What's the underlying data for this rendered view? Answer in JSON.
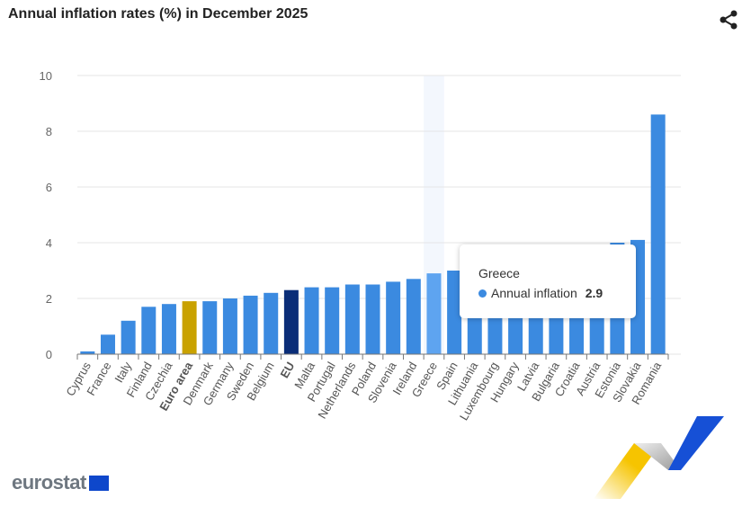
{
  "title": "Annual inflation rates (%) in December 2025",
  "share_icon": "share-icon",
  "tooltip": {
    "country": "Greece",
    "series": "Annual inflation",
    "value": "2.9"
  },
  "logo": {
    "text": "eurostat"
  },
  "colors": {
    "bar": "#3b8ae0",
    "euro_area": "#c9a200",
    "eu": "#0a2d78",
    "highlight": "#5ea4f0",
    "grid": "#e6e6e6"
  },
  "chart_data": {
    "type": "bar",
    "title": "Annual inflation rates (%) in December 2025",
    "ylim": [
      0,
      10
    ],
    "yticks": [
      0,
      2,
      4,
      6,
      8,
      10
    ],
    "grid": true,
    "categories": [
      "Cyprus",
      "France",
      "Italy",
      "Finland",
      "Czechia",
      "Euro area",
      "Denmark",
      "Germany",
      "Sweden",
      "Belgium",
      "EU",
      "Malta",
      "Portugal",
      "Netherlands",
      "Poland",
      "Slovenia",
      "Ireland",
      "Greece",
      "Spain",
      "Lithuania",
      "Luxembourg",
      "Hungary",
      "Latvia",
      "Bulgaria",
      "Croatia",
      "Austria",
      "Estonia",
      "Slovakia",
      "Romania"
    ],
    "series": [
      {
        "name": "Annual inflation",
        "values": [
          0.1,
          0.7,
          1.2,
          1.7,
          1.8,
          1.9,
          1.9,
          2.0,
          2.1,
          2.2,
          2.3,
          2.4,
          2.4,
          2.5,
          2.5,
          2.6,
          2.7,
          2.9,
          3.0,
          3.1,
          3.2,
          3.3,
          3.5,
          3.5,
          3.8,
          3.8,
          4.0,
          4.1,
          8.6
        ]
      }
    ],
    "bold_categories": [
      "Euro area",
      "EU"
    ],
    "highlighted": "Greece"
  }
}
